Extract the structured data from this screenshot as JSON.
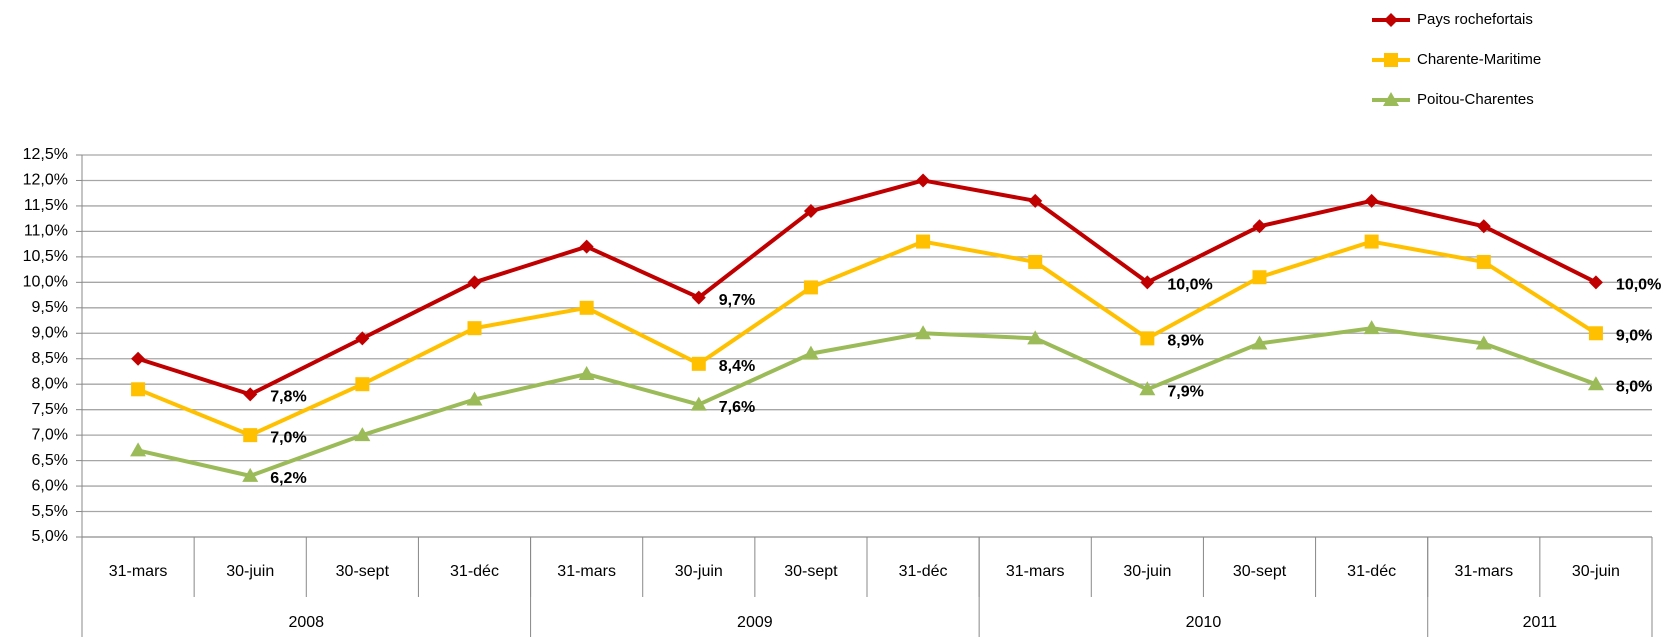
{
  "chart_data": {
    "type": "line",
    "categories": [
      "31-mars",
      "30-juin",
      "30-sept",
      "31-déc",
      "31-mars",
      "30-juin",
      "30-sept",
      "31-déc",
      "31-mars",
      "30-juin",
      "30-sept",
      "31-déc",
      "31-mars",
      "30-juin"
    ],
    "category_groups": [
      {
        "label": "2008",
        "span": 4
      },
      {
        "label": "2009",
        "span": 4
      },
      {
        "label": "2010",
        "span": 4
      },
      {
        "label": "2011",
        "span": 2
      }
    ],
    "series": [
      {
        "name": "Pays rochefortais",
        "color": "#c00000",
        "marker": "diamond",
        "values": [
          8.5,
          7.8,
          8.9,
          10.0,
          10.7,
          9.7,
          11.4,
          12.0,
          11.6,
          10.0,
          11.1,
          11.6,
          11.1,
          10.0
        ],
        "value_labels": [
          null,
          "7,8%",
          null,
          null,
          null,
          "9,7%",
          null,
          null,
          null,
          "10,0%",
          null,
          null,
          null,
          "10,0%"
        ]
      },
      {
        "name": "Charente-Maritime",
        "color": "#ffc000",
        "marker": "square",
        "values": [
          7.9,
          7.0,
          8.0,
          9.1,
          9.5,
          8.4,
          9.9,
          10.8,
          10.4,
          8.9,
          10.1,
          10.8,
          10.4,
          9.0
        ],
        "value_labels": [
          null,
          "7,0%",
          null,
          null,
          null,
          "8,4%",
          null,
          null,
          null,
          "8,9%",
          null,
          null,
          null,
          "9,0%"
        ]
      },
      {
        "name": "Poitou-Charentes",
        "color": "#9bbb59",
        "marker": "triangle",
        "values": [
          6.7,
          6.2,
          7.0,
          7.7,
          8.2,
          7.6,
          8.6,
          9.0,
          8.9,
          7.9,
          8.8,
          9.1,
          8.8,
          8.0
        ],
        "value_labels": [
          null,
          "6,2%",
          null,
          null,
          null,
          "7,6%",
          null,
          null,
          null,
          "7,9%",
          null,
          null,
          null,
          "8,0%"
        ]
      }
    ],
    "ylim": [
      5.0,
      12.5
    ],
    "yticks": [
      {
        "value": 5.0,
        "label": "5,0%"
      },
      {
        "value": 5.5,
        "label": "5,5%"
      },
      {
        "value": 6.0,
        "label": "6,0%"
      },
      {
        "value": 6.5,
        "label": "6,5%"
      },
      {
        "value": 7.0,
        "label": "7,0%"
      },
      {
        "value": 7.5,
        "label": "7,5%"
      },
      {
        "value": 8.0,
        "label": "8,0%"
      },
      {
        "value": 8.5,
        "label": "8,5%"
      },
      {
        "value": 9.0,
        "label": "9,0%"
      },
      {
        "value": 9.5,
        "label": "9,5%"
      },
      {
        "value": 10.0,
        "label": "10,0%"
      },
      {
        "value": 10.5,
        "label": "10,5%"
      },
      {
        "value": 11.0,
        "label": "11,0%"
      },
      {
        "value": 11.5,
        "label": "11,5%"
      },
      {
        "value": 12.0,
        "label": "12,0%"
      },
      {
        "value": 12.5,
        "label": "12,5%"
      }
    ],
    "grid": true,
    "legend": "top-right"
  }
}
